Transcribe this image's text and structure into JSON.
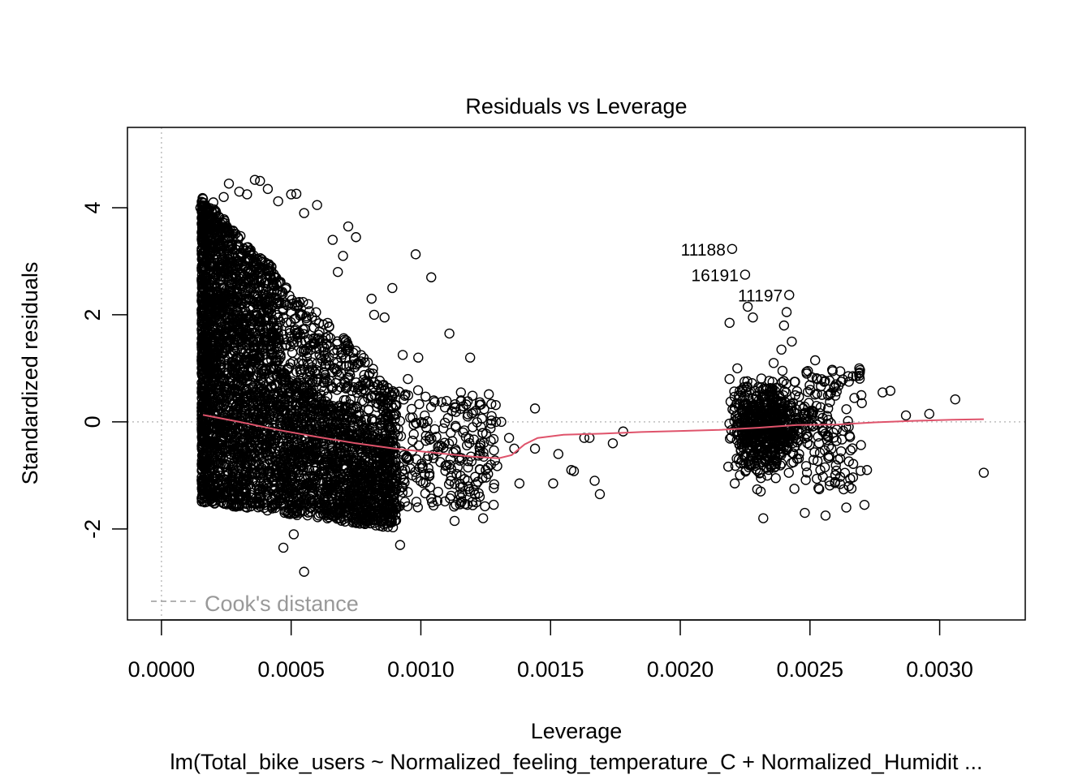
{
  "chart_data": {
    "type": "scatter",
    "title": "Residuals vs Leverage",
    "xlabel": "Leverage",
    "ylabel": "Standardized residuals",
    "subtitle": "lm(Total_bike_users ~ Normalized_feeling_temperature_C + Normalized_Humidit ...",
    "xlim": [
      -0.0001311,
      0.0033299
    ],
    "ylim": [
      -3.7,
      5.5
    ],
    "x_ticks": [
      0.0,
      0.0005,
      0.001,
      0.0015,
      0.002,
      0.0025,
      0.003
    ],
    "x_tick_labels": [
      "0.0000",
      "0.0005",
      "0.0010",
      "0.0015",
      "0.0020",
      "0.0025",
      "0.0030"
    ],
    "y_ticks": [
      -2,
      0,
      2,
      4
    ],
    "y_tick_labels": [
      "-2",
      "0",
      "2",
      "4"
    ],
    "legend": {
      "label": "Cook's distance",
      "position": "bottom-left"
    },
    "labeled_points": [
      {
        "label": "11188",
        "x": 0.0022,
        "y": 3.23
      },
      {
        "label": "16191",
        "x": 0.00225,
        "y": 2.75
      },
      {
        "label": "11197",
        "x": 0.00242,
        "y": 2.37
      }
    ],
    "points": [
      [
        0.00015,
        4.0
      ],
      [
        0.0002,
        4.1
      ],
      [
        0.00024,
        4.2
      ],
      [
        0.00026,
        4.45
      ],
      [
        0.0003,
        4.3
      ],
      [
        0.00033,
        4.25
      ],
      [
        0.00036,
        4.52
      ],
      [
        0.00038,
        4.5
      ],
      [
        0.00041,
        4.35
      ],
      [
        0.00045,
        4.12
      ],
      [
        0.0005,
        4.25
      ],
      [
        0.00052,
        4.26
      ],
      [
        0.00055,
        3.9
      ],
      [
        0.0006,
        4.05
      ],
      [
        0.00066,
        3.4
      ],
      [
        0.00072,
        3.65
      ],
      [
        0.00075,
        3.45
      ],
      [
        0.00068,
        2.8
      ],
      [
        0.0007,
        3.1
      ],
      [
        0.00081,
        2.3
      ],
      [
        0.00082,
        2.0
      ],
      [
        0.00086,
        1.95
      ],
      [
        0.00089,
        2.5
      ],
      [
        0.00098,
        3.13
      ],
      [
        0.00104,
        2.7
      ],
      [
        0.00111,
        1.65
      ],
      [
        0.00119,
        1.2
      ],
      [
        0.00093,
        1.25
      ],
      [
        0.00099,
        1.2
      ],
      [
        0.00095,
        0.8
      ],
      [
        0.00105,
        0.4
      ],
      [
        0.00112,
        0.2
      ],
      [
        0.00118,
        0.1
      ],
      [
        0.0012,
        -0.1
      ],
      [
        0.00123,
        -0.4
      ],
      [
        0.00125,
        -0.9
      ],
      [
        0.00127,
        -0.8
      ],
      [
        0.00129,
        0.0
      ],
      [
        0.00131,
        0.0
      ],
      [
        0.00134,
        -0.3
      ],
      [
        0.00136,
        -0.5
      ],
      [
        0.00138,
        -1.15
      ],
      [
        0.00144,
        0.25
      ],
      [
        0.00144,
        -0.5
      ],
      [
        0.00151,
        -1.15
      ],
      [
        0.00153,
        -0.6
      ],
      [
        0.00158,
        -0.9
      ],
      [
        0.00159,
        -0.92
      ],
      [
        0.00163,
        -0.3
      ],
      [
        0.00165,
        -0.3
      ],
      [
        0.00167,
        -1.1
      ],
      [
        0.00169,
        -1.35
      ],
      [
        0.00174,
        -0.4
      ],
      [
        0.00178,
        -0.18
      ],
      [
        0.00124,
        -1.8
      ],
      [
        0.00113,
        -1.85
      ],
      [
        0.00092,
        -2.3
      ],
      [
        0.00055,
        -2.8
      ],
      [
        0.00047,
        -2.35
      ],
      [
        0.00051,
        -2.1
      ],
      [
        0.00016,
        0.0
      ],
      [
        0.00017,
        -0.6
      ],
      [
        0.00018,
        1.6
      ],
      [
        0.00016,
        2.3
      ],
      [
        0.00019,
        1.05
      ],
      [
        0.00278,
        0.55
      ],
      [
        0.00281,
        0.58
      ],
      [
        0.00287,
        0.12
      ],
      [
        0.00296,
        0.15
      ],
      [
        0.00306,
        0.42
      ],
      [
        0.00317,
        -0.95
      ],
      [
        0.00269,
        1.0
      ],
      [
        0.0027,
        0.35
      ],
      [
        0.00265,
        0.75
      ],
      [
        0.00271,
        -1.55
      ],
      [
        0.00264,
        -1.6
      ],
      [
        0.00265,
        -1.2
      ],
      [
        0.00272,
        -0.9
      ],
      [
        0.00219,
        1.85
      ],
      [
        0.00226,
        2.15
      ],
      [
        0.00228,
        1.95
      ],
      [
        0.00241,
        2.05
      ],
      [
        0.0024,
        1.8
      ],
      [
        0.00239,
        1.35
      ],
      [
        0.00243,
        1.5
      ],
      [
        0.00232,
        -1.8
      ],
      [
        0.00248,
        -1.7
      ],
      [
        0.00256,
        -1.75
      ],
      [
        0.00252,
        1.15
      ],
      [
        0.0026,
        0.7
      ],
      [
        0.00221,
        -1.15
      ],
      [
        0.00219,
        0.8
      ],
      [
        0.00222,
        1.0
      ],
      [
        0.00224,
        0.4
      ],
      [
        0.00228,
        -0.3
      ],
      [
        0.00231,
        -1.3
      ],
      [
        0.00236,
        1.1
      ],
      [
        0.00238,
        -0.6
      ],
      [
        0.00244,
        -1.25
      ],
      [
        0.00246,
        0.3
      ],
      [
        0.00249,
        -0.4
      ],
      [
        0.00251,
        0.15
      ],
      [
        0.00254,
        -0.9
      ],
      [
        0.00257,
        0.25
      ],
      [
        0.00259,
        -0.2
      ],
      [
        0.00262,
        -0.55
      ],
      [
        0.00235,
        0.55
      ],
      [
        0.0023,
        0.0
      ],
      [
        0.00226,
        0.65
      ],
      [
        0.00233,
        -0.75
      ]
    ],
    "loess": [
      [
        0.00016,
        0.13
      ],
      [
        0.0003,
        0.0
      ],
      [
        0.00045,
        -0.15
      ],
      [
        0.0006,
        -0.28
      ],
      [
        0.00075,
        -0.4
      ],
      [
        0.0009,
        -0.5
      ],
      [
        0.001,
        -0.55
      ],
      [
        0.0011,
        -0.6
      ],
      [
        0.0012,
        -0.65
      ],
      [
        0.0013,
        -0.68
      ],
      [
        0.00135,
        -0.62
      ],
      [
        0.0014,
        -0.42
      ],
      [
        0.00145,
        -0.3
      ],
      [
        0.00155,
        -0.24
      ],
      [
        0.0017,
        -0.22
      ],
      [
        0.00185,
        -0.19
      ],
      [
        0.002,
        -0.17
      ],
      [
        0.00215,
        -0.15
      ],
      [
        0.0023,
        -0.11
      ],
      [
        0.00245,
        -0.06
      ],
      [
        0.0026,
        -0.05
      ],
      [
        0.00275,
        -0.01
      ],
      [
        0.0029,
        0.02
      ],
      [
        0.00305,
        0.04
      ],
      [
        0.00317,
        0.05
      ]
    ],
    "colors": {
      "points": "#000000",
      "loess": "#df536b",
      "reference": "#bebebe",
      "legend_text": "#999999"
    }
  }
}
